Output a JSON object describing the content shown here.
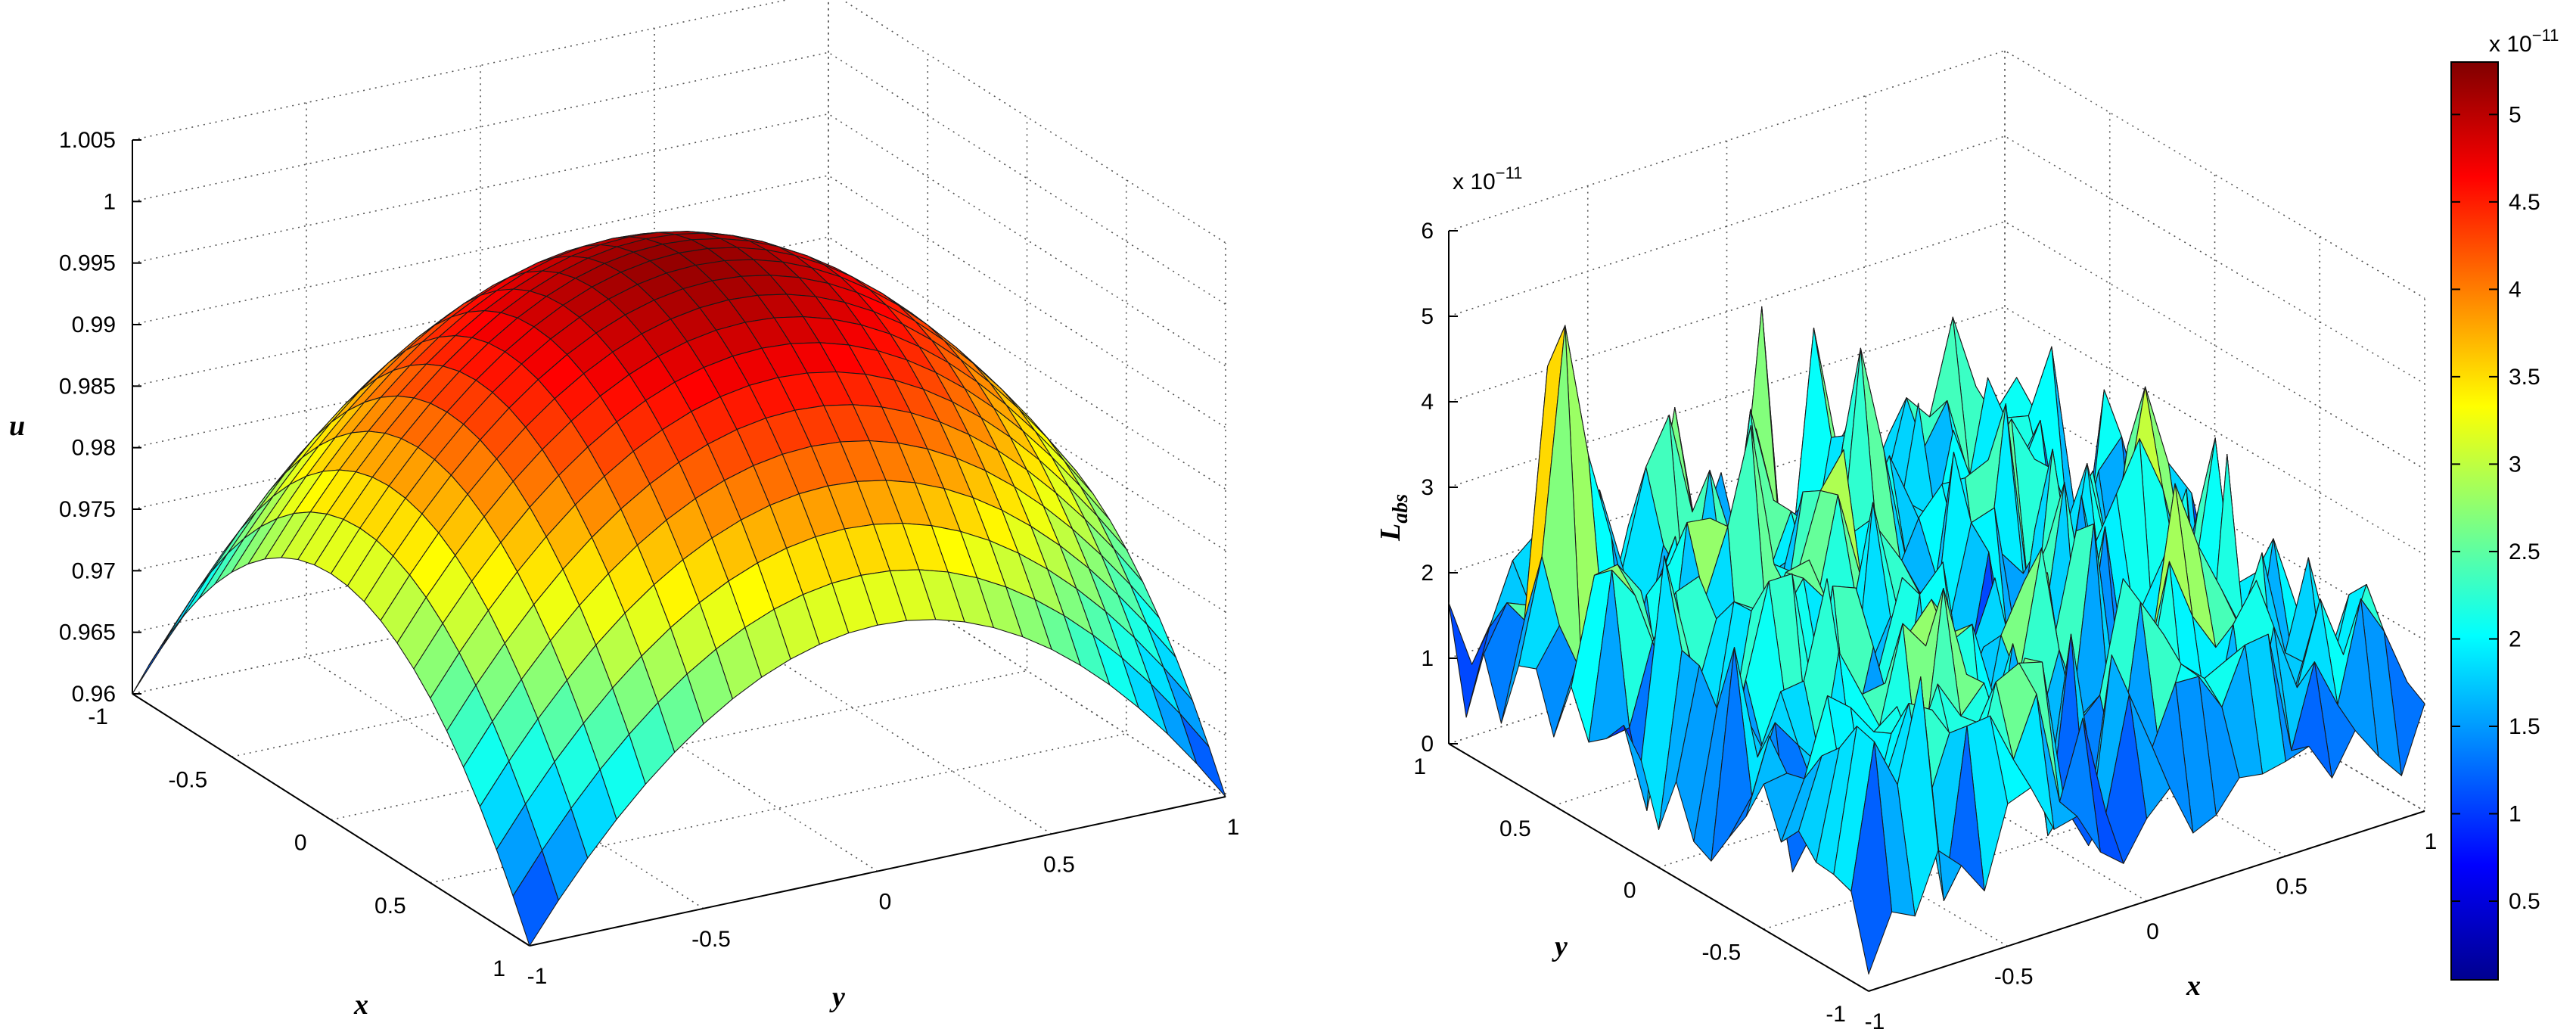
{
  "chart_data": [
    {
      "type": "surface3d",
      "title": "",
      "xlabel": "x",
      "ylabel": "y",
      "zlabel": "u",
      "xlim": [
        -1,
        1
      ],
      "ylim": [
        -1,
        1
      ],
      "zlim": [
        0.96,
        1.005
      ],
      "xticks": [
        "-1",
        "-0.5",
        "0",
        "0.5",
        "1"
      ],
      "yticks": [
        "-1",
        "-0.5",
        "0",
        "0.5",
        "1"
      ],
      "zticks": [
        "0.96",
        "0.965",
        "0.97",
        "0.975",
        "0.98",
        "0.985",
        "0.99",
        "0.995",
        "1",
        "1.005"
      ],
      "grid_n": 24,
      "colormap": "jet",
      "surface": {
        "formula": "u(x,y) = 1 - 0.02*(x^2 + y^2)",
        "peak": {
          "x": 0,
          "y": 0,
          "u": 1.0
        },
        "corner_min": 0.96,
        "edge_midpoint": 0.98
      }
    },
    {
      "type": "surface3d",
      "title": "",
      "xlabel": "x",
      "ylabel": "y",
      "zlabel": "L_abs",
      "zlabel_main": "L",
      "zlabel_sub": "abs",
      "xlim": [
        -1,
        1
      ],
      "ylim": [
        -1,
        1
      ],
      "zlim": [
        0,
        6e-11
      ],
      "xticks": [
        "-1",
        "-0.5",
        "0",
        "0.5",
        "1"
      ],
      "yticks": [
        "-1",
        "-0.5",
        "0",
        "0.5",
        "1"
      ],
      "zticks": [
        "0",
        "1",
        "2",
        "3",
        "4",
        "5",
        "6"
      ],
      "zscale_label": "x 10",
      "zscale_exp": "−11",
      "grid_n": 24,
      "colormap": "jet",
      "surface": {
        "description_values": "absolute error, noisy, range approx 0 to 5.3e-11",
        "min": 5e-13,
        "max": 5.3e-11,
        "typical": 1.5e-11
      },
      "colorbar": {
        "range": [
          5e-13,
          5.3e-11
        ],
        "ticks": [
          "0.5",
          "1",
          "1.5",
          "2",
          "2.5",
          "3",
          "3.5",
          "4",
          "4.5",
          "5"
        ],
        "scale_label": "x 10",
        "scale_exp": "−11"
      }
    }
  ]
}
